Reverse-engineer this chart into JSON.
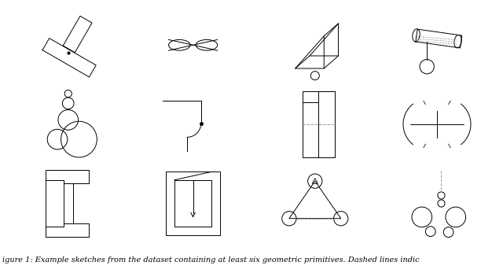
{
  "fig_width": 6.4,
  "fig_height": 3.47,
  "dpi": 100,
  "bg_color": "#ffffff",
  "line_color": "#000000",
  "line_width": 0.7,
  "dashed_color": "#999999",
  "caption": "igure 1: Example sketches from the dataset containing at least six geometric primitives. Dashed lines indic",
  "caption_fontsize": 7.0
}
